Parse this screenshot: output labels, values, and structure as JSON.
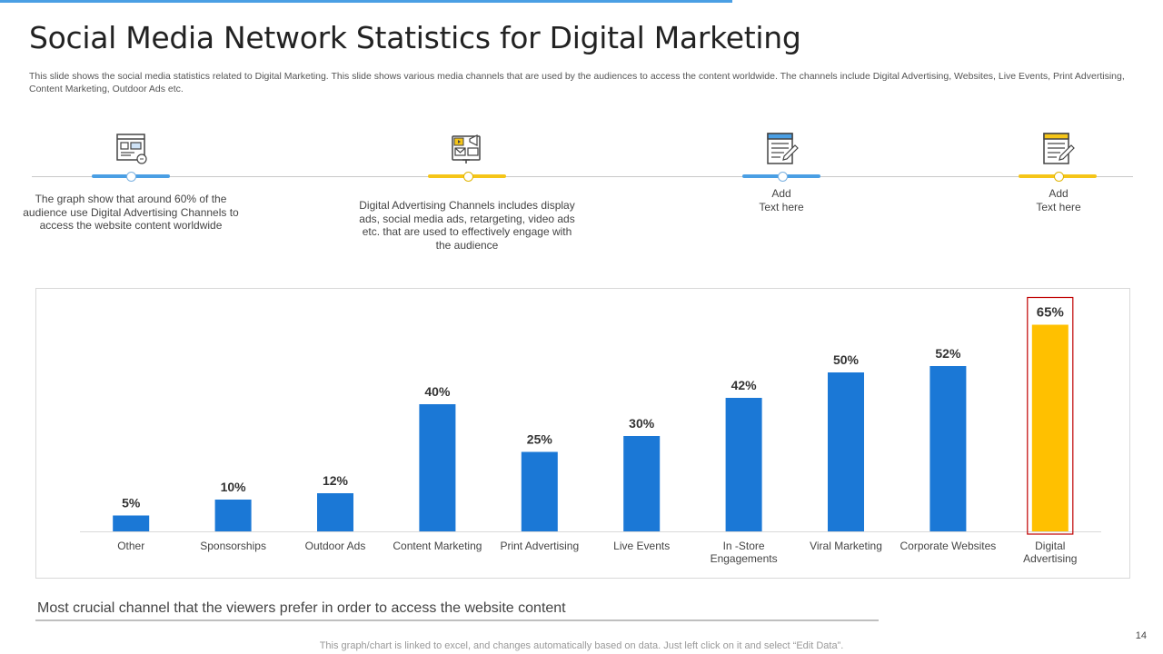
{
  "slide": {
    "title": "Social Media Network Statistics for Digital Marketing",
    "subtitle": "This slide shows the social media statistics related to Digital Marketing. This slide shows various media channels that are used by the audiences to access the content worldwide. The channels include Digital Advertising, Websites, Live Events, Print Advertising, Content Marketing, Outdoor Ads etc.",
    "page_number": "14",
    "footnote": "This graph/chart is linked to excel, and changes automatically based on data. Just left click on it and select “Edit Data”.",
    "bottom_caption": "Most crucial channel that the viewers prefer in order to access the website content"
  },
  "timeline": [
    {
      "icon": "website-browser-icon",
      "color": "#4a9fe4",
      "text": "The graph show that around 60% of the audience use Digital Advertising Channels to access the website content worldwide"
    },
    {
      "icon": "digital-advertising-icon",
      "color": "#f5c518",
      "text": "Digital Advertising Channels includes display ads, social media ads, retargeting, video ads etc. that are used to effectively engage with the audience"
    },
    {
      "icon": "notepad-pencil-icon",
      "color": "#4a9fe4",
      "text": "Add\nText here"
    },
    {
      "icon": "notepad-pencil-icon",
      "color": "#f5c518",
      "text": "Add\nText here"
    }
  ],
  "chart_data": {
    "type": "bar",
    "categories": [
      "Other",
      "Sponsorships",
      "Outdoor Ads",
      "Content Marketing",
      "Print Advertising",
      "Live Events",
      "In -Store Engagements",
      "Viral Marketing",
      "Corporate Websites",
      "Digital Advertising"
    ],
    "values": [
      5,
      10,
      12,
      40,
      25,
      30,
      42,
      50,
      52,
      65
    ],
    "labels": [
      "5%",
      "10%",
      "12%",
      "40%",
      "25%",
      "30%",
      "42%",
      "50%",
      "52%",
      "65%"
    ],
    "ylim": [
      0,
      70
    ],
    "bar_color": "#1b78d6",
    "highlight_index": 9,
    "highlight_color": "#ffc000",
    "highlight_border": "#c00000"
  }
}
